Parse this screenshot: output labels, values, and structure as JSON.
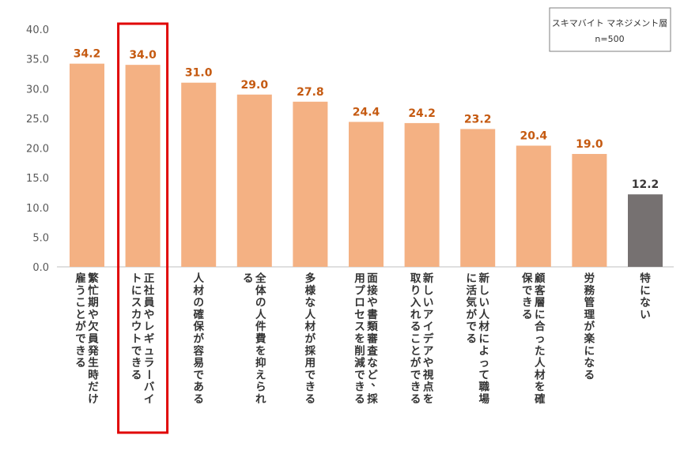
{
  "chart_data": {
    "type": "bar",
    "legend": {
      "line1": "スキマバイト マネジメント層",
      "line2": "n=500",
      "placement": "top-right"
    },
    "ylim": [
      0,
      40
    ],
    "yticks": [
      "0.0",
      "5.0",
      "10.0",
      "15.0",
      "20.0",
      "25.0",
      "30.0",
      "35.0",
      "40.0"
    ],
    "categories": [
      [
        "繁忙期や欠員発生時だけ",
        "雇うことができる"
      ],
      [
        "正社員やレギュラーバイ",
        "トにスカウトできる"
      ],
      [
        "人材の確保が容易である"
      ],
      [
        "全体の人件費を抑えられ",
        "る"
      ],
      [
        "多様な人材が採用できる"
      ],
      [
        "面接や書類審査など、採",
        "用プロセスを削減できる"
      ],
      [
        "新しいアイデアや視点を",
        "取り入れることができる"
      ],
      [
        "新しい人材によって職場",
        "に活気がでる"
      ],
      [
        "顧客層に合った人材を確",
        "保できる"
      ],
      [
        "労務管理が楽になる"
      ],
      [
        "特にない"
      ]
    ],
    "values": [
      34.2,
      34.0,
      31.0,
      29.0,
      27.8,
      24.4,
      24.2,
      23.2,
      20.4,
      19.0,
      12.2
    ],
    "value_labels": [
      "34.2",
      "34.0",
      "31.0",
      "29.0",
      "27.8",
      "24.4",
      "24.2",
      "23.2",
      "20.4",
      "19.0",
      "12.2"
    ],
    "highlighted_index": 1,
    "colors": {
      "bar": "#F4B183",
      "bar_last": "#767171",
      "label": "#C55A11",
      "label_last": "#3B3838",
      "highlight_box": "#E00000",
      "axis": "#BFBFBF"
    }
  }
}
